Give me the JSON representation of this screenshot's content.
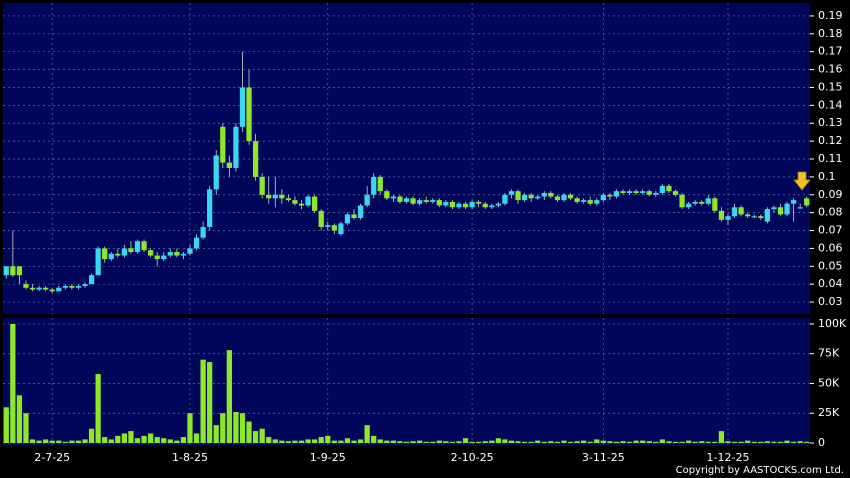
{
  "chart_data": {
    "type": "candlestick",
    "up_color": "#38d8f0",
    "down_color": "#8ee82a",
    "grid": true,
    "footer": "Copyright by AASTOCKS.com Ltd.",
    "categories": [
      null,
      null,
      null,
      null,
      null,
      null,
      null,
      "2-7-25",
      null,
      null,
      null,
      null,
      null,
      null,
      null,
      null,
      null,
      null,
      null,
      null,
      null,
      null,
      null,
      null,
      null,
      null,
      null,
      null,
      "1-8-25",
      null,
      null,
      null,
      null,
      null,
      null,
      null,
      null,
      null,
      null,
      null,
      null,
      null,
      null,
      null,
      null,
      null,
      null,
      null,
      null,
      "1-9-25",
      null,
      null,
      null,
      null,
      null,
      null,
      null,
      null,
      null,
      null,
      null,
      null,
      null,
      null,
      null,
      null,
      null,
      null,
      null,
      null,
      null,
      "2-10-25",
      null,
      null,
      null,
      null,
      null,
      null,
      null,
      null,
      null,
      null,
      null,
      null,
      null,
      null,
      null,
      null,
      null,
      null,
      null,
      "3-11-25",
      null,
      null,
      null,
      null,
      null,
      null,
      null,
      null,
      null,
      null,
      null,
      null,
      null,
      null,
      null,
      null,
      null,
      null,
      "1-12-25",
      null,
      null,
      null,
      null,
      null,
      null,
      null,
      null,
      null,
      null,
      null,
      null
    ],
    "candles": [
      [
        0.045,
        0.05,
        0.043,
        0.05
      ],
      [
        0.05,
        0.07,
        0.044,
        0.045
      ],
      [
        0.05,
        0.05,
        0.04,
        0.045
      ],
      [
        0.04,
        0.042,
        0.037,
        0.038
      ],
      [
        0.038,
        0.04,
        0.036,
        0.037
      ],
      [
        0.037,
        0.039,
        0.036,
        0.038
      ],
      [
        0.038,
        0.039,
        0.036,
        0.037
      ],
      [
        0.037,
        0.038,
        0.035,
        0.036
      ],
      [
        0.036,
        0.039,
        0.036,
        0.038
      ],
      [
        0.038,
        0.04,
        0.037,
        0.039
      ],
      [
        0.039,
        0.04,
        0.037,
        0.038
      ],
      [
        0.038,
        0.04,
        0.037,
        0.039
      ],
      [
        0.039,
        0.041,
        0.038,
        0.04
      ],
      [
        0.04,
        0.046,
        0.04,
        0.045
      ],
      [
        0.045,
        0.061,
        0.045,
        0.06
      ],
      [
        0.06,
        0.061,
        0.052,
        0.054
      ],
      [
        0.054,
        0.058,
        0.053,
        0.057
      ],
      [
        0.057,
        0.06,
        0.055,
        0.056
      ],
      [
        0.056,
        0.062,
        0.055,
        0.06
      ],
      [
        0.06,
        0.064,
        0.057,
        0.058
      ],
      [
        0.058,
        0.065,
        0.057,
        0.064
      ],
      [
        0.064,
        0.065,
        0.058,
        0.059
      ],
      [
        0.059,
        0.06,
        0.055,
        0.056
      ],
      [
        0.056,
        0.058,
        0.05,
        0.054
      ],
      [
        0.054,
        0.058,
        0.053,
        0.056
      ],
      [
        0.056,
        0.06,
        0.055,
        0.058
      ],
      [
        0.058,
        0.06,
        0.055,
        0.056
      ],
      [
        0.056,
        0.058,
        0.054,
        0.057
      ],
      [
        0.057,
        0.062,
        0.056,
        0.06
      ],
      [
        0.06,
        0.068,
        0.059,
        0.066
      ],
      [
        0.066,
        0.075,
        0.065,
        0.072
      ],
      [
        0.072,
        0.095,
        0.07,
        0.093
      ],
      [
        0.093,
        0.115,
        0.09,
        0.112
      ],
      [
        0.128,
        0.13,
        0.105,
        0.108
      ],
      [
        0.108,
        0.112,
        0.1,
        0.105
      ],
      [
        0.105,
        0.13,
        0.103,
        0.128
      ],
      [
        0.128,
        0.17,
        0.125,
        0.15
      ],
      [
        0.15,
        0.16,
        0.118,
        0.12
      ],
      [
        0.12,
        0.124,
        0.098,
        0.1
      ],
      [
        0.1,
        0.102,
        0.088,
        0.09
      ],
      [
        0.09,
        0.1,
        0.085,
        0.088
      ],
      [
        0.088,
        0.1,
        0.083,
        0.09
      ],
      [
        0.09,
        0.093,
        0.085,
        0.088
      ],
      [
        0.088,
        0.09,
        0.086,
        0.087
      ],
      [
        0.087,
        0.089,
        0.084,
        0.085
      ],
      [
        0.085,
        0.087,
        0.082,
        0.084
      ],
      [
        0.084,
        0.09,
        0.083,
        0.089
      ],
      [
        0.089,
        0.09,
        0.08,
        0.081
      ],
      [
        0.081,
        0.082,
        0.07,
        0.072
      ],
      [
        0.072,
        0.075,
        0.07,
        0.073
      ],
      [
        0.073,
        0.074,
        0.068,
        0.07
      ],
      [
        0.068,
        0.075,
        0.067,
        0.074
      ],
      [
        0.074,
        0.08,
        0.073,
        0.079
      ],
      [
        0.079,
        0.082,
        0.076,
        0.077
      ],
      [
        0.077,
        0.085,
        0.076,
        0.084
      ],
      [
        0.084,
        0.095,
        0.083,
        0.09
      ],
      [
        0.09,
        0.102,
        0.088,
        0.1
      ],
      [
        0.1,
        0.101,
        0.09,
        0.092
      ],
      [
        0.092,
        0.093,
        0.087,
        0.088
      ],
      [
        0.088,
        0.09,
        0.086,
        0.089
      ],
      [
        0.089,
        0.09,
        0.085,
        0.086
      ],
      [
        0.086,
        0.089,
        0.085,
        0.088
      ],
      [
        0.088,
        0.089,
        0.084,
        0.085
      ],
      [
        0.085,
        0.088,
        0.084,
        0.087
      ],
      [
        0.087,
        0.089,
        0.085,
        0.086
      ],
      [
        0.086,
        0.088,
        0.085,
        0.087
      ],
      [
        0.087,
        0.088,
        0.083,
        0.084
      ],
      [
        0.084,
        0.087,
        0.083,
        0.086
      ],
      [
        0.086,
        0.087,
        0.082,
        0.083
      ],
      [
        0.083,
        0.086,
        0.082,
        0.085
      ],
      [
        0.085,
        0.086,
        0.082,
        0.083
      ],
      [
        0.083,
        0.087,
        0.082,
        0.086
      ],
      [
        0.086,
        0.087,
        0.083,
        0.085
      ],
      [
        0.085,
        0.086,
        0.082,
        0.083
      ],
      [
        0.083,
        0.085,
        0.082,
        0.084
      ],
      [
        0.084,
        0.086,
        0.083,
        0.085
      ],
      [
        0.085,
        0.091,
        0.084,
        0.09
      ],
      [
        0.09,
        0.093,
        0.088,
        0.092
      ],
      [
        0.092,
        0.093,
        0.085,
        0.087
      ],
      [
        0.087,
        0.091,
        0.086,
        0.09
      ],
      [
        0.09,
        0.091,
        0.086,
        0.088
      ],
      [
        0.088,
        0.09,
        0.087,
        0.089
      ],
      [
        0.089,
        0.092,
        0.087,
        0.091
      ],
      [
        0.091,
        0.092,
        0.088,
        0.089
      ],
      [
        0.089,
        0.09,
        0.086,
        0.087
      ],
      [
        0.087,
        0.091,
        0.086,
        0.09
      ],
      [
        0.09,
        0.091,
        0.087,
        0.088
      ],
      [
        0.088,
        0.089,
        0.085,
        0.086
      ],
      [
        0.086,
        0.088,
        0.085,
        0.087
      ],
      [
        0.087,
        0.089,
        0.084,
        0.085
      ],
      [
        0.085,
        0.088,
        0.084,
        0.087
      ],
      [
        0.087,
        0.091,
        0.086,
        0.09
      ],
      [
        0.09,
        0.091,
        0.087,
        0.089
      ],
      [
        0.089,
        0.093,
        0.088,
        0.092
      ],
      [
        0.092,
        0.093,
        0.09,
        0.091
      ],
      [
        0.091,
        0.093,
        0.09,
        0.092
      ],
      [
        0.092,
        0.093,
        0.09,
        0.091
      ],
      [
        0.091,
        0.093,
        0.09,
        0.092
      ],
      [
        0.092,
        0.093,
        0.089,
        0.09
      ],
      [
        0.09,
        0.092,
        0.089,
        0.091
      ],
      [
        0.091,
        0.096,
        0.09,
        0.095
      ],
      [
        0.095,
        0.096,
        0.091,
        0.092
      ],
      [
        0.092,
        0.093,
        0.089,
        0.09
      ],
      [
        0.09,
        0.091,
        0.082,
        0.083
      ],
      [
        0.083,
        0.086,
        0.082,
        0.085
      ],
      [
        0.085,
        0.087,
        0.084,
        0.086
      ],
      [
        0.086,
        0.087,
        0.084,
        0.085
      ],
      [
        0.085,
        0.09,
        0.084,
        0.088
      ],
      [
        0.088,
        0.089,
        0.08,
        0.081
      ],
      [
        0.081,
        0.083,
        0.075,
        0.076
      ],
      [
        0.076,
        0.079,
        0.073,
        0.078
      ],
      [
        0.078,
        0.085,
        0.077,
        0.083
      ],
      [
        0.083,
        0.084,
        0.078,
        0.079
      ],
      [
        0.079,
        0.08,
        0.077,
        0.078
      ],
      [
        0.078,
        0.079,
        0.077,
        0.078
      ],
      [
        0.078,
        0.079,
        0.076,
        0.077
      ],
      [
        0.075,
        0.083,
        0.074,
        0.082
      ],
      [
        0.082,
        0.084,
        0.08,
        0.083
      ],
      [
        0.083,
        0.085,
        0.078,
        0.079
      ],
      [
        0.079,
        0.086,
        0.078,
        0.085
      ],
      [
        0.085,
        0.088,
        0.075,
        0.087
      ],
      [
        0.083,
        0.085,
        0.082,
        0.083
      ],
      [
        0.088,
        0.089,
        0.083,
        0.084
      ]
    ],
    "ylim": [
      0.025,
      0.195
    ],
    "yticks": [
      0.03,
      0.04,
      0.05,
      0.06,
      0.07,
      0.08,
      0.09,
      0.1,
      0.11,
      0.12,
      0.13,
      0.14,
      0.15,
      0.16,
      0.17,
      0.18,
      0.19
    ],
    "volume": {
      "color": "#8ee82a",
      "ylim": [
        0,
        105000
      ],
      "yticks": [
        0,
        {
          "value": 25000,
          "label": "25K"
        },
        {
          "value": 50000,
          "label": "50K"
        },
        {
          "value": 75000,
          "label": "75K"
        },
        {
          "value": 100000,
          "label": "100K"
        }
      ],
      "values": [
        30000,
        100000,
        40000,
        25000,
        3000,
        2000,
        3000,
        2000,
        2000,
        1000,
        2000,
        2000,
        3000,
        12000,
        58000,
        5000,
        3000,
        6000,
        8000,
        10000,
        4000,
        6000,
        8000,
        5000,
        4000,
        3000,
        2000,
        5000,
        25000,
        8000,
        70000,
        68000,
        15000,
        25000,
        78000,
        26000,
        25000,
        18000,
        10000,
        12000,
        5000,
        3000,
        2000,
        1500,
        2000,
        2000,
        3000,
        3000,
        5000,
        6000,
        2000,
        2000,
        4000,
        2000,
        3000,
        15000,
        6000,
        3000,
        2000,
        2000,
        1500,
        1000,
        1500,
        2000,
        1000,
        1000,
        2000,
        1500,
        1000,
        1500,
        4000,
        1000,
        1000,
        1500,
        2000,
        4000,
        3000,
        2000,
        1500,
        1000,
        1000,
        2000,
        1000,
        1500,
        1000,
        2000,
        1000,
        1500,
        2000,
        1000,
        3000,
        2000,
        1500,
        1000,
        1500,
        1000,
        2000,
        2000,
        1500,
        1000,
        3000,
        1500,
        1000,
        1000,
        2000,
        1000,
        1500,
        1000,
        1000,
        10000,
        1500,
        1000,
        1000,
        2000,
        1000,
        1000,
        1500,
        1000,
        1000,
        2000,
        1000,
        1500,
        1000
      ]
    }
  }
}
